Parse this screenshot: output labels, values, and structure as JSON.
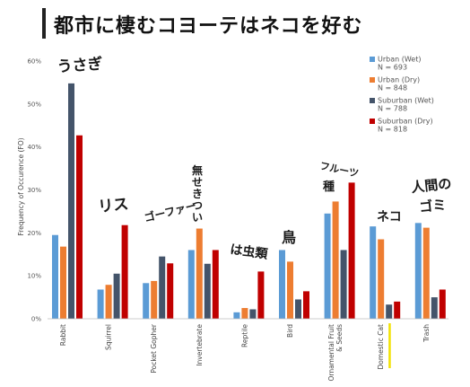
{
  "title": "都市に棲むコヨーテはネコを好む",
  "chart_data": {
    "type": "bar",
    "ylabel": "Frequency of Occurence (FO)",
    "ylim": [
      0,
      60
    ],
    "yticks": [
      0,
      10,
      20,
      30,
      40,
      50,
      60
    ],
    "ytick_labels": [
      "0%",
      "10%",
      "20%",
      "30%",
      "40%",
      "50%",
      "60%"
    ],
    "grid": false,
    "legend_position": "top-right",
    "categories": [
      "Rabbit",
      "Squirrel",
      "Pocket Gopher",
      "Invertebrate",
      "Reptile",
      "Bird",
      "Ornamental Fruit & Seeds",
      "Domestic Cat",
      "Trash"
    ],
    "series": [
      {
        "name": "Urban (Wet)",
        "n_label": "N = 693",
        "color": "#5b9bd5",
        "values": [
          19.5,
          6.8,
          8.3,
          16.0,
          1.5,
          16.0,
          24.5,
          21.5,
          22.3
        ]
      },
      {
        "name": "Urban (Dry)",
        "n_label": "N = 848",
        "color": "#ed7d31",
        "values": [
          16.8,
          7.9,
          8.8,
          21.0,
          2.5,
          13.3,
          27.3,
          18.5,
          21.2
        ]
      },
      {
        "name": "Suburban (Wet)",
        "n_label": "N = 788",
        "color": "#44546a",
        "values": [
          54.8,
          10.5,
          14.5,
          12.8,
          2.2,
          4.5,
          16.0,
          3.3,
          5.0
        ]
      },
      {
        "name": "Suburban (Dry)",
        "n_label": "N = 818",
        "color": "#c00000",
        "values": [
          42.7,
          21.8,
          12.9,
          16.0,
          11.0,
          6.4,
          31.7,
          4.0,
          6.8
        ]
      }
    ],
    "annotations": [
      {
        "category": "Rabbit",
        "text": "うさぎ"
      },
      {
        "category": "Squirrel",
        "text": "リス"
      },
      {
        "category": "Pocket Gopher",
        "text": "ゴーファー"
      },
      {
        "category": "Invertebrate",
        "text": "無せきつい"
      },
      {
        "category": "Reptile",
        "text": "は虫類"
      },
      {
        "category": "Bird",
        "text": "鳥"
      },
      {
        "category": "Ornamental Fruit & Seeds",
        "text": "フルーツ 種"
      },
      {
        "category": "Domestic Cat",
        "text": "ネコ"
      },
      {
        "category": "Trash",
        "text": "人間の ゴミ"
      }
    ],
    "highlight_category": "Domestic Cat",
    "highlight_color": "#f2e200"
  }
}
